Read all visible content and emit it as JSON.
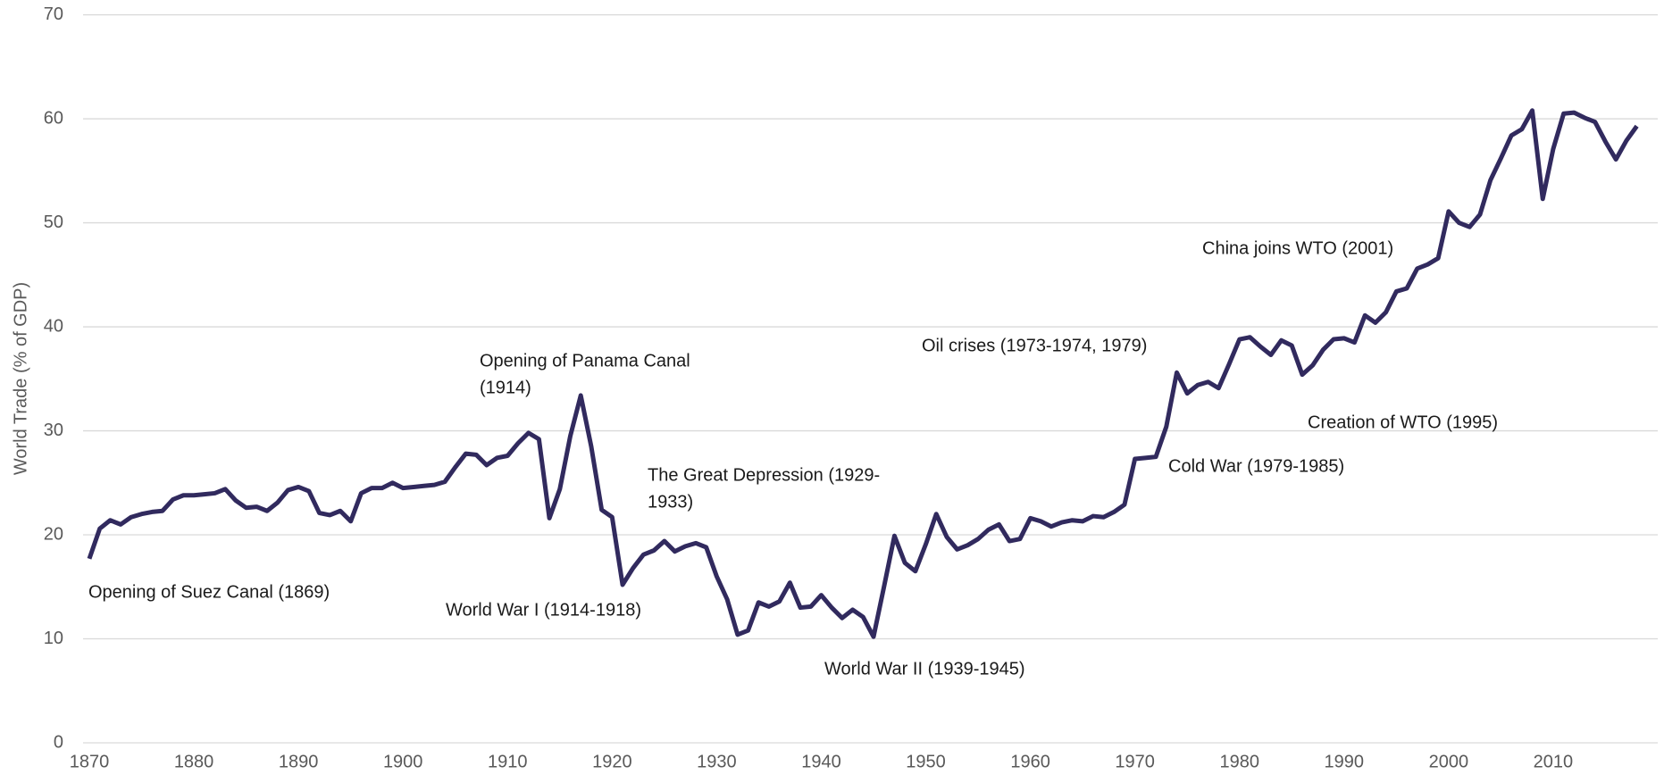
{
  "chart_data": {
    "type": "line",
    "y_label": "World Trade (% of GDP)",
    "x": [
      1870,
      1871,
      1872,
      1873,
      1874,
      1875,
      1876,
      1877,
      1878,
      1879,
      1880,
      1881,
      1882,
      1883,
      1884,
      1885,
      1886,
      1887,
      1888,
      1889,
      1890,
      1891,
      1892,
      1893,
      1894,
      1895,
      1896,
      1897,
      1898,
      1899,
      1900,
      1901,
      1902,
      1903,
      1904,
      1905,
      1906,
      1907,
      1908,
      1909,
      1910,
      1911,
      1912,
      1913,
      1914,
      1915,
      1916,
      1917,
      1918,
      1919,
      1920,
      1921,
      1922,
      1923,
      1924,
      1925,
      1926,
      1927,
      1928,
      1929,
      1930,
      1931,
      1932,
      1933,
      1934,
      1935,
      1936,
      1937,
      1938,
      1939,
      1940,
      1941,
      1942,
      1943,
      1944,
      1945,
      1946,
      1947,
      1948,
      1949,
      1950,
      1951,
      1952,
      1953,
      1954,
      1955,
      1956,
      1957,
      1958,
      1959,
      1960,
      1961,
      1962,
      1963,
      1964,
      1965,
      1966,
      1967,
      1968,
      1969,
      1970,
      1971,
      1972,
      1973,
      1974,
      1975,
      1976,
      1977,
      1978,
      1979,
      1980,
      1981,
      1982,
      1983,
      1984,
      1985,
      1986,
      1987,
      1988,
      1989,
      1990,
      1991,
      1992,
      1993,
      1994,
      1995,
      1996,
      1997,
      1998,
      1999,
      2000,
      2001,
      2002,
      2003,
      2004,
      2005,
      2006,
      2007,
      2008,
      2009,
      2010,
      2011,
      2012,
      2013,
      2014,
      2015,
      2016,
      2017,
      2018
    ],
    "values": [
      17.7,
      20.6,
      21.4,
      21.0,
      21.7,
      22.0,
      22.2,
      22.3,
      23.4,
      23.8,
      23.8,
      23.9,
      24.0,
      24.4,
      23.3,
      22.6,
      22.7,
      22.3,
      23.1,
      24.3,
      24.6,
      24.2,
      22.1,
      21.9,
      22.3,
      21.3,
      24.0,
      24.5,
      24.5,
      25.0,
      24.5,
      24.6,
      24.7,
      24.8,
      25.1,
      26.5,
      27.8,
      27.7,
      26.7,
      27.4,
      27.6,
      28.8,
      29.8,
      29.2,
      21.6,
      24.4,
      29.5,
      33.4,
      28.5,
      22.4,
      21.7,
      15.2,
      16.8,
      18.1,
      18.5,
      19.4,
      18.4,
      18.9,
      19.2,
      18.8,
      16.0,
      13.8,
      10.4,
      10.8,
      13.5,
      13.1,
      13.6,
      15.4,
      13.0,
      13.1,
      14.2,
      13.0,
      12.0,
      12.8,
      12.1,
      10.2,
      15.0,
      19.9,
      17.3,
      16.5,
      19.1,
      22.0,
      19.8,
      18.6,
      19.0,
      19.6,
      20.5,
      21.0,
      19.4,
      19.6,
      21.6,
      21.3,
      20.8,
      21.2,
      21.4,
      21.3,
      21.8,
      21.7,
      22.2,
      22.9,
      27.3,
      27.4,
      27.5,
      30.4,
      35.6,
      33.6,
      34.4,
      34.7,
      34.1,
      36.4,
      38.8,
      39.0,
      38.1,
      37.3,
      38.7,
      38.2,
      35.4,
      36.3,
      37.8,
      38.8,
      38.9,
      38.5,
      41.1,
      40.4,
      41.4,
      43.4,
      43.7,
      45.6,
      46.0,
      46.6,
      51.1,
      50.0,
      49.6,
      50.8,
      54.1,
      56.2,
      58.4,
      59.0,
      60.8,
      52.3,
      57.1,
      60.5,
      60.6,
      60.1,
      59.7,
      57.8,
      56.1,
      57.9,
      59.3
    ],
    "color": "#312a5e",
    "xlim": [
      1870,
      2020
    ],
    "xticks": [
      1870,
      1880,
      1890,
      1900,
      1910,
      1920,
      1930,
      1940,
      1950,
      1960,
      1970,
      1980,
      1990,
      2000,
      2010
    ],
    "ylim": [
      0,
      70
    ],
    "yticks": [
      0,
      10,
      20,
      30,
      40,
      50,
      60,
      70
    ],
    "grid": true,
    "annotations": [
      {
        "text": [
          "Opening of Suez Canal (1869)"
        ]
      },
      {
        "text": [
          "World War I (1914-1918)"
        ]
      },
      {
        "text": [
          "Opening of Panama Canal",
          "(1914)"
        ]
      },
      {
        "text": [
          "The Great Depression (1929-",
          "1933)"
        ]
      },
      {
        "text": [
          "World War II (1939-1945)"
        ]
      },
      {
        "text": [
          "Oil crises (1973-1974, 1979)"
        ]
      },
      {
        "text": [
          "Cold War (1979-1985)"
        ]
      },
      {
        "text": [
          "Creation of WTO (1995)"
        ]
      },
      {
        "text": [
          "China joins WTO (2001)"
        ]
      }
    ]
  }
}
